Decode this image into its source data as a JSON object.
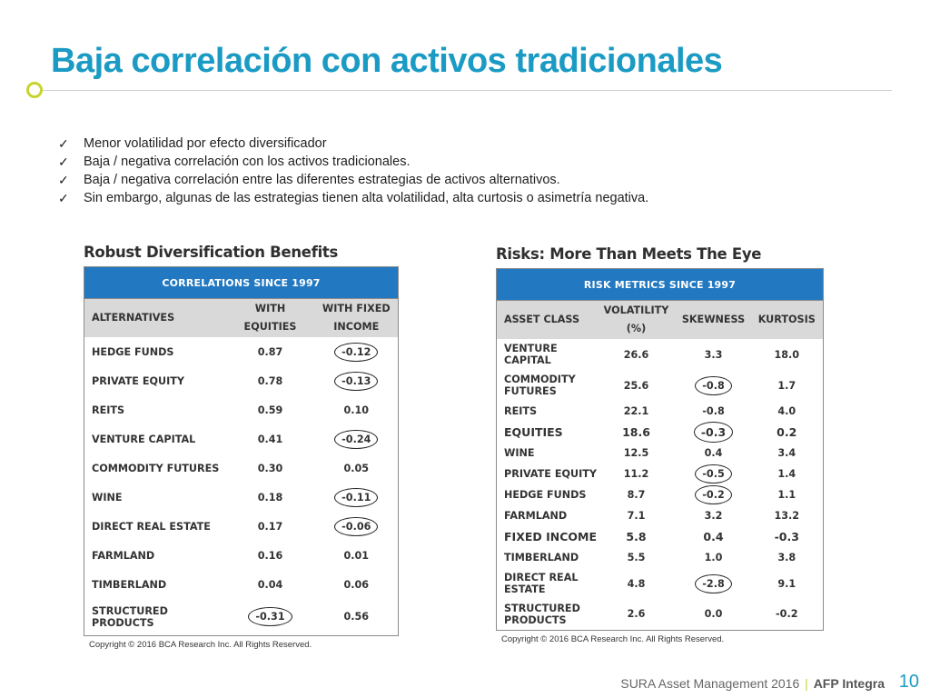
{
  "title": "Baja correlación con activos tradicionales",
  "bullets": [
    "Menor volatilidad por efecto diversificador",
    "Baja / negativa correlación con los activos tradicionales.",
    "Baja / negativa correlación entre las diferentes estrategias de activos alternativos.",
    "Sin embargo, algunas de las estrategias tienen alta volatilidad, alta curtosis o asimetría negativa."
  ],
  "left_table": {
    "heading": "Robust Diversification Benefits",
    "banner": "CORRELATIONS SINCE 1997",
    "col_alt": "ALTERNATIVES",
    "col_eq_1": "WITH",
    "col_eq_2": "EQUITIES",
    "col_fi_1": "WITH FIXED",
    "col_fi_2": "INCOME",
    "rows": [
      {
        "name": "HEDGE FUNDS",
        "equities": "0.87",
        "fixed": "-0.12"
      },
      {
        "name": "PRIVATE EQUITY",
        "equities": "0.78",
        "fixed": "-0.13"
      },
      {
        "name": "REITS",
        "equities": "0.59",
        "fixed": "0.10"
      },
      {
        "name": "VENTURE CAPITAL",
        "equities": "0.41",
        "fixed": "-0.24"
      },
      {
        "name": "COMMODITY FUTURES",
        "equities": "0.30",
        "fixed": "0.05"
      },
      {
        "name": "WINE",
        "equities": "0.18",
        "fixed": "-0.11"
      },
      {
        "name": "DIRECT REAL ESTATE",
        "equities": "0.17",
        "fixed": "-0.06"
      },
      {
        "name": "FARMLAND",
        "equities": "0.16",
        "fixed": "0.01"
      },
      {
        "name": "TIMBERLAND",
        "equities": "0.04",
        "fixed": "0.06"
      },
      {
        "name_1": "STRUCTURED",
        "name_2": "PRODUCTS",
        "equities": "-0.31",
        "fixed": "0.56"
      }
    ],
    "copyright": "Copyright © 2016 BCA Research Inc. All Rights Reserved."
  },
  "right_table": {
    "heading": "Risks: More Than Meets The Eye",
    "banner": "RISK METRICS SINCE 1997",
    "col_asset": "ASSET CLASS",
    "col_vol_1": "VOLATILITY",
    "col_vol_2": "(%)",
    "col_skew": "SKEWNESS",
    "col_kurt": "KURTOSIS",
    "rows": [
      {
        "name_1": "VENTURE",
        "name_2": "CAPITAL",
        "vol": "26.6",
        "skew": "3.3",
        "kurt": "18.0"
      },
      {
        "name_1": "COMMODITY",
        "name_2": "FUTURES",
        "vol": "25.6",
        "skew": "-0.8",
        "kurt": "1.7"
      },
      {
        "name": "REITS",
        "vol": "22.1",
        "skew": "-0.8",
        "kurt": "4.0"
      },
      {
        "name": "EQUITIES",
        "vol": "18.6",
        "skew": "-0.3",
        "kurt": "0.2"
      },
      {
        "name": "WINE",
        "vol": "12.5",
        "skew": "0.4",
        "kurt": "3.4"
      },
      {
        "name": "PRIVATE EQUITY",
        "vol": "11.2",
        "skew": "-0.5",
        "kurt": "1.4"
      },
      {
        "name": "HEDGE FUNDS",
        "vol": "8.7",
        "skew": "-0.2",
        "kurt": "1.1"
      },
      {
        "name": "FARMLAND",
        "vol": "7.1",
        "skew": "3.2",
        "kurt": "13.2"
      },
      {
        "name": "FIXED INCOME",
        "vol": "5.8",
        "skew": "0.4",
        "kurt": "-0.3"
      },
      {
        "name": "TIMBERLAND",
        "vol": "5.5",
        "skew": "1.0",
        "kurt": "3.8"
      },
      {
        "name_1": "DIRECT REAL",
        "name_2": "ESTATE",
        "vol": "4.8",
        "skew": "-2.8",
        "kurt": "9.1"
      },
      {
        "name_1": "STRUCTURED",
        "name_2": "PRODUCTS",
        "vol": "2.6",
        "skew": "0.0",
        "kurt": "-0.2"
      }
    ],
    "copyright": "Copyright © 2016 BCA Research Inc. All Rights Reserved."
  },
  "footer": {
    "company": "SURA Asset Management 2016",
    "separator": "|",
    "brand": "AFP Integra",
    "page": "10"
  },
  "colors": {
    "title": "#1b9bc4",
    "accent_dot": "#c8d42e",
    "table_banner": "#2379c1",
    "table_header": "#d9d9d9"
  }
}
